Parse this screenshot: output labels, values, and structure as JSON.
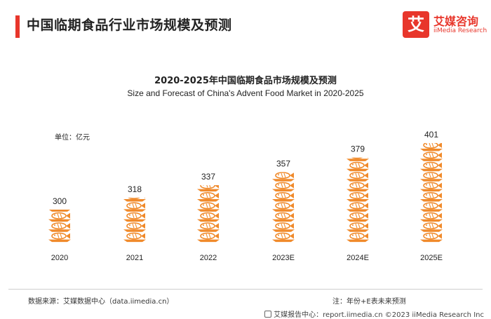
{
  "header": {
    "title": "中国临期食品行业市场规模及预测",
    "logo_mark": "艾",
    "logo_cn": "艾媒咨询",
    "logo_en": "iiMedia Research"
  },
  "colors": {
    "accent": "#e8362b",
    "bar": "#f08a2b"
  },
  "chart_data": {
    "type": "bar",
    "title": "2020-2025年中国临期食品市场规模及预测",
    "subtitle": "Size and Forecast of China's Advent Food Market in 2020-2025",
    "unit": "单位：亿元",
    "categories": [
      "2020",
      "2021",
      "2022",
      "2023E",
      "2024E",
      "2025E"
    ],
    "values": [
      300,
      318,
      337,
      357,
      379,
      401
    ],
    "ylim": [
      250,
      401
    ],
    "grid": false,
    "mark_style": "stacked fish-on-plate pictograph"
  },
  "footer": {
    "source": "数据来源：艾媒数据中心（data.iimedia.cn）",
    "note": "注：年份+E表未来预测",
    "credit": "艾媒报告中心：report.iimedia.cn  ©2023  iiMedia Research  Inc"
  }
}
